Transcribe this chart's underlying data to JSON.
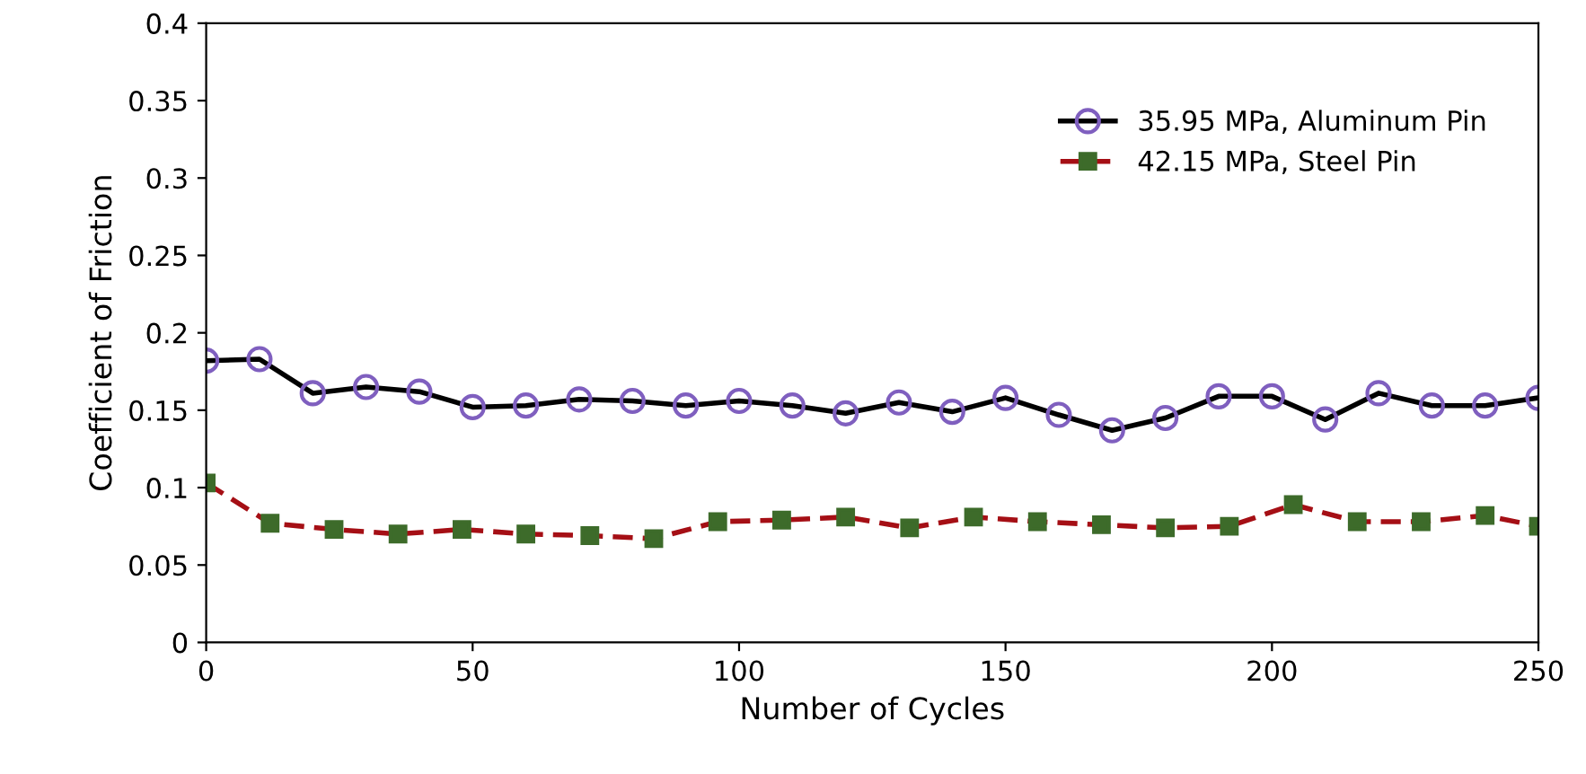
{
  "chart_data": {
    "type": "line",
    "xlabel": "Number of Cycles",
    "ylabel": "Coefficient of Friction",
    "xlim": [
      0,
      250
    ],
    "xticks": [
      0,
      50,
      100,
      150,
      200,
      250
    ],
    "ylim": [
      0,
      0.4
    ],
    "yticks": [
      0,
      0.05,
      0.1,
      0.15,
      0.2,
      0.25,
      0.3,
      0.35,
      0.4
    ],
    "grid": false,
    "legend": "top right",
    "series": [
      {
        "name": "35.95 MPa, Aluminum Pin",
        "color": "#000000",
        "marker": "circle",
        "line_style": "solid",
        "x": [
          0,
          10,
          20,
          30,
          40,
          50,
          60,
          70,
          80,
          90,
          100,
          110,
          120,
          130,
          140,
          150,
          160,
          170,
          180,
          190,
          200,
          210,
          220,
          230,
          240,
          250
        ],
        "values": [
          0.182,
          0.183,
          0.161,
          0.165,
          0.162,
          0.152,
          0.153,
          0.157,
          0.156,
          0.153,
          0.156,
          0.153,
          0.148,
          0.155,
          0.149,
          0.158,
          0.147,
          0.137,
          0.145,
          0.159,
          0.159,
          0.144,
          0.161,
          0.153,
          0.153,
          0.158
        ]
      },
      {
        "name": "42.15 MPa, Steel Pin",
        "color": "#a50f15",
        "marker": "square",
        "line_style": "dashed",
        "x": [
          0,
          12,
          24,
          36,
          48,
          60,
          72,
          84,
          96,
          108,
          120,
          132,
          144,
          156,
          168,
          180,
          192,
          204,
          216,
          228,
          240,
          250
        ],
        "values": [
          0.103,
          0.077,
          0.073,
          0.07,
          0.073,
          0.07,
          0.069,
          0.067,
          0.078,
          0.079,
          0.081,
          0.074,
          0.081,
          0.078,
          0.076,
          0.074,
          0.075,
          0.089,
          0.078,
          0.078,
          0.082,
          0.075
        ]
      }
    ]
  }
}
